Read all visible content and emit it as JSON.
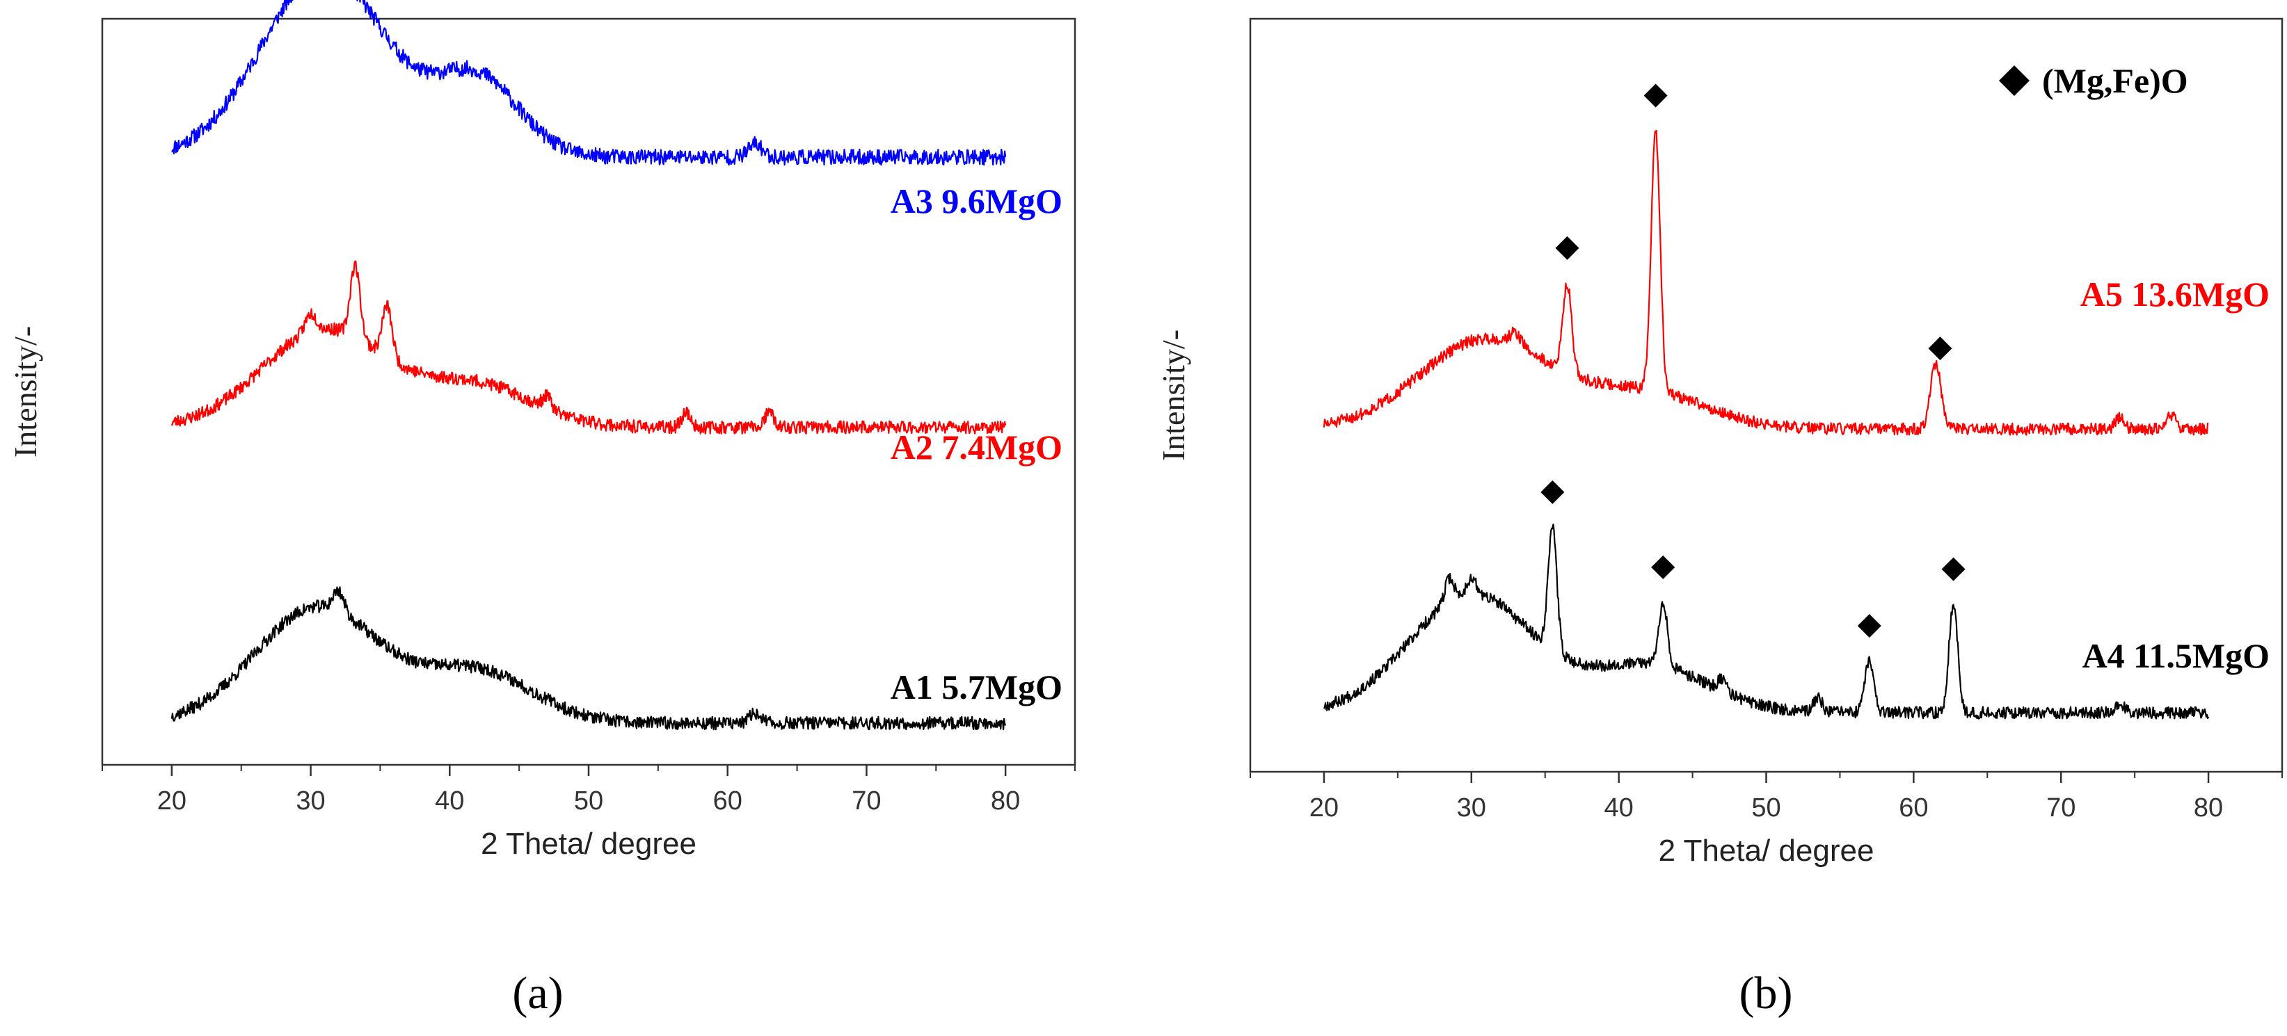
{
  "chart_data": [
    {
      "type": "line",
      "panel_label": "(a)",
      "xlabel": "2 Theta/ degree",
      "ylabel": "Intensity/-",
      "xlim": [
        15,
        85
      ],
      "xticks": [
        20,
        30,
        40,
        50,
        60,
        70,
        80
      ],
      "series": [
        {
          "name": "A3 9.6MgO",
          "color": "#0000ff",
          "offset": 2.2,
          "peaks": [
            [
              31,
              0.72,
              4.5
            ],
            [
              42,
              0.3,
              3
            ],
            [
              62,
              0.05,
              0.5
            ]
          ],
          "noise": 0.03,
          "seed": 11
        },
        {
          "name": "A2 7.4MgO",
          "color": "#ff0000",
          "offset": 1.15,
          "peaks": [
            [
              31,
              0.38,
              4.5
            ],
            [
              42,
              0.16,
              4
            ],
            [
              33.2,
              0.28,
              0.35
            ],
            [
              35.5,
              0.2,
              0.35
            ],
            [
              30,
              0.07,
              0.4
            ],
            [
              47,
              0.05,
              0.3
            ],
            [
              57,
              0.06,
              0.3
            ],
            [
              63,
              0.06,
              0.3
            ]
          ],
          "noise": 0.025,
          "seed": 23
        },
        {
          "name": "A1 5.7MgO",
          "color": "#000000",
          "offset": 0,
          "peaks": [
            [
              30.5,
              0.45,
              4.5
            ],
            [
              42,
              0.2,
              4
            ],
            [
              32,
              0.08,
              0.4
            ],
            [
              62,
              0.04,
              0.4
            ]
          ],
          "noise": 0.025,
          "seed": 37
        }
      ]
    },
    {
      "type": "line",
      "panel_label": "(b)",
      "xlabel": "2 Theta/ degree",
      "ylabel": "Intensity/-",
      "xlim": [
        15,
        85
      ],
      "xticks": [
        20,
        30,
        40,
        50,
        60,
        70,
        80
      ],
      "legend": {
        "marker": "diamond",
        "label": "(Mg,Fe)O",
        "placement": "top-right"
      },
      "series": [
        {
          "name": "A5 13.6MgO",
          "color": "#ff0000",
          "offset": 1.2,
          "peaks": [
            [
              31,
              0.38,
              4.5
            ],
            [
              42,
              0.15,
              4
            ],
            [
              42.5,
              1.1,
              0.3
            ],
            [
              36.5,
              0.38,
              0.3
            ],
            [
              61.5,
              0.28,
              0.35
            ],
            [
              33,
              0.05,
              0.4
            ],
            [
              74,
              0.05,
              0.3
            ],
            [
              77.5,
              0.06,
              0.3
            ]
          ],
          "noise": 0.025,
          "seed": 51,
          "markers": [
            42.5,
            36.5,
            61.8
          ]
        },
        {
          "name": "A4 11.5MgO",
          "color": "#000000",
          "offset": 0,
          "peaks": [
            [
              30,
              0.5,
              4.2
            ],
            [
              42,
              0.2,
              4
            ],
            [
              35.5,
              0.52,
              0.3
            ],
            [
              43,
              0.27,
              0.3
            ],
            [
              57,
              0.22,
              0.3
            ],
            [
              62.7,
              0.46,
              0.3
            ],
            [
              28.5,
              0.1,
              0.3
            ],
            [
              30,
              0.07,
              0.3
            ],
            [
              47,
              0.05,
              0.3
            ],
            [
              53.5,
              0.06,
              0.3
            ],
            [
              74,
              0.04,
              0.3
            ]
          ],
          "noise": 0.025,
          "seed": 67,
          "markers": [
            35.5,
            43,
            57,
            62.7
          ]
        }
      ]
    }
  ]
}
